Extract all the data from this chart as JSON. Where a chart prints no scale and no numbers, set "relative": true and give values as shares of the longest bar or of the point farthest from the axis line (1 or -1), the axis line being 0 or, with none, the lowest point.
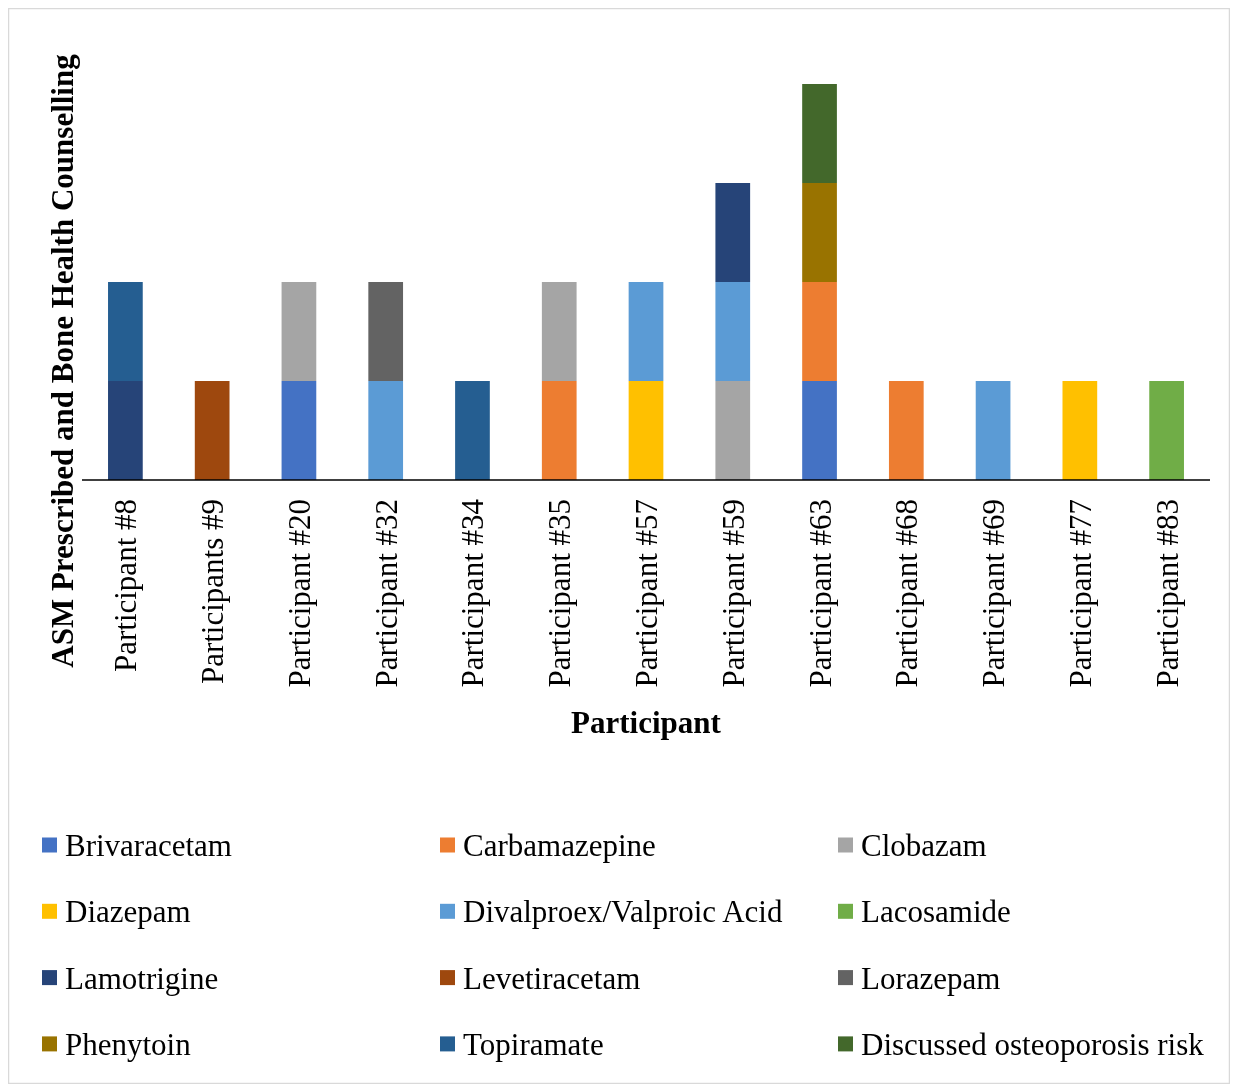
{
  "chart_data": {
    "type": "bar",
    "stacked": true,
    "relative": true,
    "legend": "bottom",
    "xlabel": "Participant",
    "ylabel": "ASM Prescribed and Bone Health Counselling",
    "categories": [
      "Participant #8",
      "Participants #9",
      "Participant #20",
      "Participant #32",
      "Participant #34",
      "Participant #35",
      "Participant #57",
      "Participant #59",
      "Participant #63",
      "Participant #68",
      "Participant #69",
      "Participant #77",
      "Participant #83"
    ],
    "series": [
      {
        "name": "Brivaracetam",
        "color": "#4472c4",
        "values": [
          null,
          null,
          0.25,
          null,
          null,
          null,
          null,
          null,
          0.25,
          null,
          null,
          null,
          null
        ]
      },
      {
        "name": "Carbamazepine",
        "color": "#ed7d31",
        "values": [
          null,
          null,
          null,
          null,
          null,
          0.25,
          null,
          null,
          0.25,
          0.25,
          null,
          null,
          null
        ]
      },
      {
        "name": "Clobazam",
        "color": "#a5a5a5",
        "values": [
          null,
          null,
          0.25,
          null,
          null,
          0.25,
          null,
          0.25,
          null,
          null,
          null,
          null,
          null
        ]
      },
      {
        "name": "Diazepam",
        "color": "#ffc000",
        "values": [
          null,
          null,
          null,
          null,
          null,
          null,
          0.25,
          null,
          null,
          null,
          null,
          0.25,
          null
        ]
      },
      {
        "name": "Divalproex/Valproic Acid",
        "color": "#5b9bd5",
        "values": [
          null,
          null,
          null,
          0.25,
          null,
          null,
          0.25,
          0.25,
          null,
          null,
          0.25,
          null,
          null
        ]
      },
      {
        "name": "Lacosamide",
        "color": "#70ad47",
        "values": [
          null,
          null,
          null,
          null,
          null,
          null,
          null,
          null,
          null,
          null,
          null,
          null,
          0.25
        ]
      },
      {
        "name": "Lamotrigine",
        "color": "#264478",
        "values": [
          0.25,
          null,
          null,
          null,
          null,
          null,
          null,
          0.25,
          null,
          null,
          null,
          null,
          null
        ]
      },
      {
        "name": "Levetiracetam",
        "color": "#9e480e",
        "values": [
          null,
          0.25,
          null,
          null,
          null,
          null,
          null,
          null,
          null,
          null,
          null,
          null,
          null
        ]
      },
      {
        "name": "Lorazepam",
        "color": "#636363",
        "values": [
          null,
          null,
          null,
          0.25,
          null,
          null,
          null,
          null,
          null,
          null,
          null,
          null,
          null
        ]
      },
      {
        "name": "Phenytoin",
        "color": "#997300",
        "values": [
          null,
          null,
          null,
          null,
          null,
          null,
          null,
          null,
          0.25,
          null,
          null,
          null,
          null
        ]
      },
      {
        "name": "Topiramate",
        "color": "#255e91",
        "values": [
          0.25,
          null,
          null,
          null,
          0.25,
          null,
          null,
          null,
          null,
          null,
          null,
          null,
          null
        ]
      },
      {
        "name": "Discussed osteoporosis risk",
        "color": "#43682b",
        "values": [
          null,
          null,
          null,
          null,
          null,
          null,
          null,
          null,
          0.25,
          null,
          null,
          null,
          null
        ]
      }
    ]
  }
}
